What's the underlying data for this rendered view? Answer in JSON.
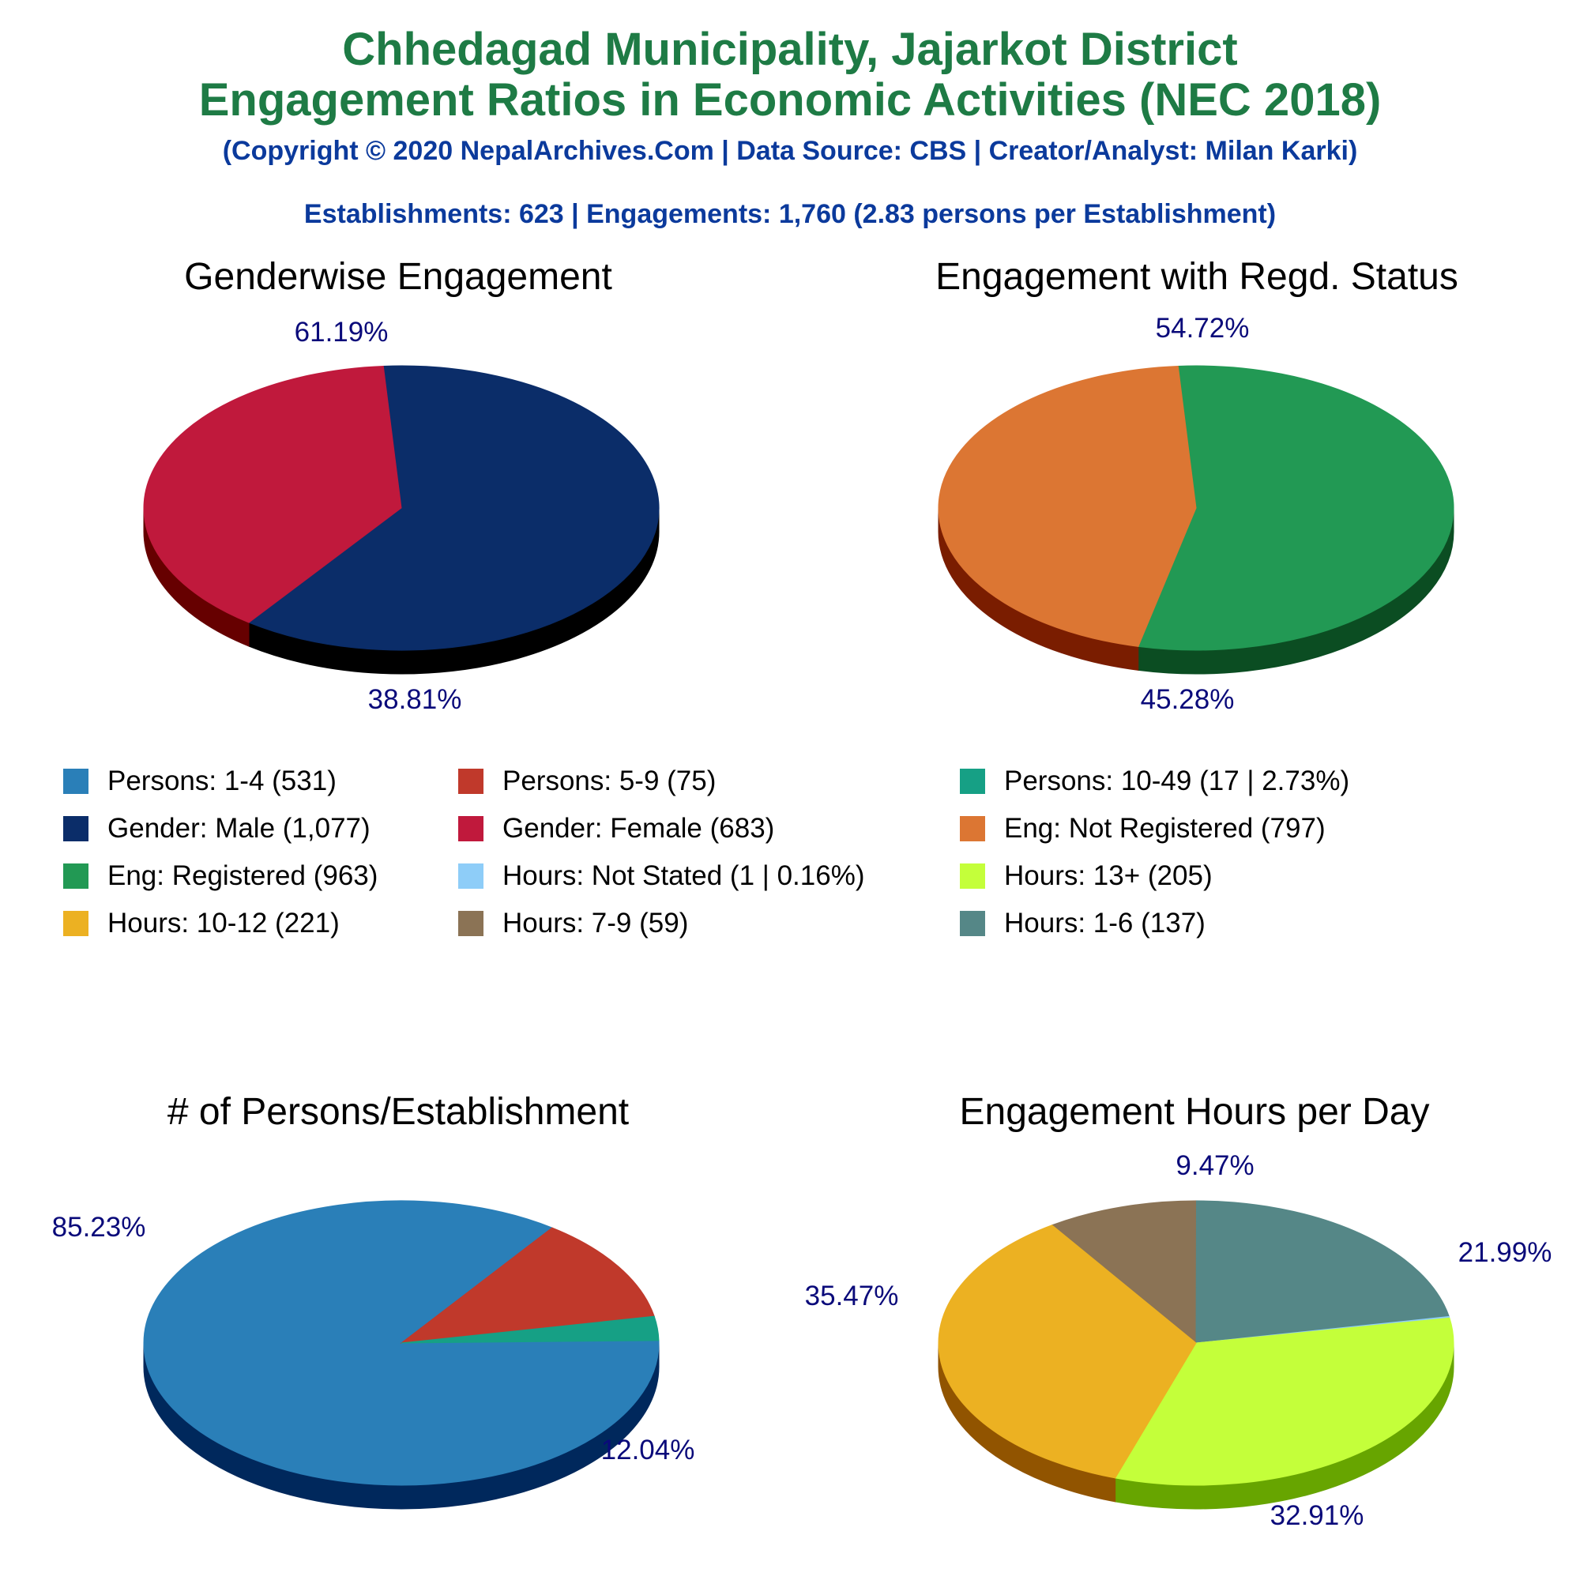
{
  "header": {
    "title_line1": "Chhedagad Municipality, Jajarkot District",
    "title_line2": "Engagement Ratios in Economic Activities (NEC 2018)",
    "credit": "(Copyright © 2020 NepalArchives.Com | Data Source: CBS | Creator/Analyst: Milan Karki)",
    "summary": "Establishments: 623 | Engagements: 1,760 (2.83 persons per Establishment)"
  },
  "legend": [
    {
      "label": "Persons: 1-4 (531)",
      "color": "#2a7fb8"
    },
    {
      "label": "Persons: 5-9 (75)",
      "color": "#c0392b"
    },
    {
      "label": "Persons: 10-49 (17 | 2.73%)",
      "color": "#16a085"
    },
    {
      "label": "Gender: Male (1,077)",
      "color": "#0b2d69"
    },
    {
      "label": "Gender: Female (683)",
      "color": "#c0193c"
    },
    {
      "label": "Eng: Not Registered (797)",
      "color": "#dc7633"
    },
    {
      "label": "Eng: Registered (963)",
      "color": "#229954"
    },
    {
      "label": "Hours: Not Stated (1 | 0.16%)",
      "color": "#8ecdf8"
    },
    {
      "label": "Hours: 13+ (205)",
      "color": "#c4ff3a"
    },
    {
      "label": "Hours: 10-12 (221)",
      "color": "#ecb122"
    },
    {
      "label": "Hours: 7-9 (59)",
      "color": "#8b7355"
    },
    {
      "label": "Hours: 1-6 (137)",
      "color": "#558787"
    }
  ],
  "chart_data": [
    {
      "type": "pie",
      "title": "Genderwise Engagement",
      "categories": [
        "Gender: Male",
        "Gender: Female"
      ],
      "values": [
        1077,
        683
      ],
      "labels": [
        "61.19%",
        "38.81%"
      ],
      "colors": [
        "#0b2d69",
        "#c0193c"
      ],
      "side_colors": [
        "#000000",
        "#660000"
      ]
    },
    {
      "type": "pie",
      "title": "Engagement with Regd. Status",
      "categories": [
        "Eng: Registered",
        "Eng: Not Registered"
      ],
      "values": [
        963,
        797
      ],
      "labels": [
        "54.72%",
        "45.28%"
      ],
      "colors": [
        "#229954",
        "#dc7633"
      ],
      "side_colors": [
        "#0b4d22",
        "#7a1d00"
      ]
    },
    {
      "type": "pie",
      "title": "# of Persons/Establishment",
      "categories": [
        "Persons: 1-4",
        "Persons: 5-9",
        "Persons: 10-49"
      ],
      "values": [
        531,
        75,
        17
      ],
      "labels": [
        "85.23%",
        "12.04%",
        ""
      ],
      "colors": [
        "#2a7fb8",
        "#c0392b",
        "#16a085"
      ],
      "side_colors": [
        "#00285c",
        "#660000",
        "#003f2c"
      ]
    },
    {
      "type": "pie",
      "title": "Engagement Hours per Day",
      "categories": [
        "Hours: 7-9",
        "Hours: 1-6",
        "Hours: Not Stated",
        "Hours: 13+",
        "Hours: 10-12"
      ],
      "values": [
        59,
        137,
        1,
        205,
        221
      ],
      "labels": [
        "9.47%",
        "21.99%",
        "",
        "32.91%",
        "35.47%"
      ],
      "colors": [
        "#8b7355",
        "#558787",
        "#8ecdf8",
        "#c4ff3a",
        "#ecb122"
      ],
      "side_colors": [
        "#4a3a22",
        "#1f4a4a",
        "#3a7aa8",
        "#67a500",
        "#915400"
      ]
    }
  ]
}
